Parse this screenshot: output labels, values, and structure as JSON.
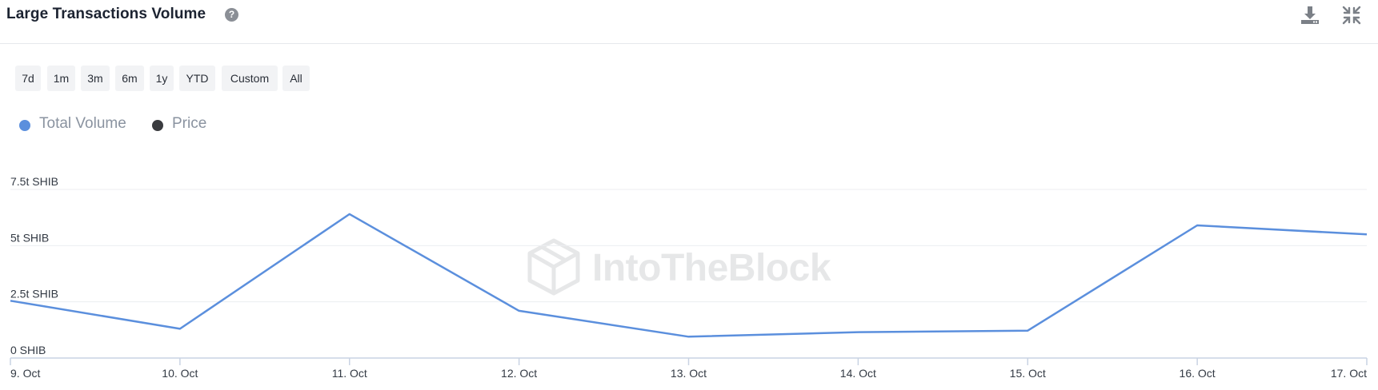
{
  "header": {
    "title": "Large Transactions Volume",
    "help_glyph": "?",
    "icons": [
      "download-icon",
      "collapse-icon"
    ]
  },
  "range_buttons": [
    "7d",
    "1m",
    "3m",
    "6m",
    "1y",
    "YTD",
    "Custom",
    "All"
  ],
  "legend": [
    {
      "label": "Total Volume",
      "color": "#5b8fdd"
    },
    {
      "label": "Price",
      "color": "#3a3b3f"
    }
  ],
  "watermark": {
    "text": "IntoTheBlock"
  },
  "colors": {
    "line": "#5b8fdd",
    "grid": "#eceef1",
    "axis": "#c9d3e3"
  },
  "chart_data": {
    "type": "line",
    "title": "Large Transactions Volume",
    "categories": [
      "9. Oct",
      "10. Oct",
      "11. Oct",
      "12. Oct",
      "13. Oct",
      "14. Oct",
      "15. Oct",
      "16. Oct",
      "17. Oct"
    ],
    "series": [
      {
        "name": "Total Volume",
        "unit": "t SHIB",
        "values": [
          2.55,
          1.3,
          6.4,
          2.1,
          0.95,
          1.15,
          1.22,
          5.9,
          5.5
        ]
      }
    ],
    "yticks": [
      {
        "value": 0,
        "label": "0 SHIB"
      },
      {
        "value": 2.5,
        "label": "2.5t SHIB"
      },
      {
        "value": 5,
        "label": "5t SHIB"
      },
      {
        "value": 7.5,
        "label": "7.5t SHIB"
      }
    ],
    "ylim": [
      0,
      7.5
    ],
    "grid": true,
    "legend_position": "top-left"
  }
}
